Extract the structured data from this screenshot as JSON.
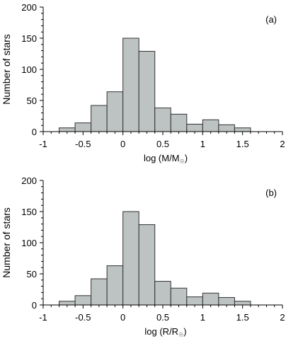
{
  "chart_data": [
    {
      "type": "bar",
      "panel_label": "(a)",
      "xlabel_main": "log (M/M",
      "xlabel_sub": "☉",
      "xlabel_close": ")",
      "ylabel": "Number of stars",
      "xlim": [
        -1,
        2
      ],
      "ylim": [
        0,
        200
      ],
      "x_ticks": [
        "-1",
        "-0.5",
        "0",
        "0.5",
        "1",
        "1.5",
        "2"
      ],
      "y_ticks": [
        "0",
        "50",
        "100",
        "150",
        "200"
      ],
      "bin_width": 0.2,
      "bins": [
        {
          "x": -0.8,
          "value": 6
        },
        {
          "x": -0.6,
          "value": 14
        },
        {
          "x": -0.4,
          "value": 42
        },
        {
          "x": -0.2,
          "value": 64
        },
        {
          "x": 0.0,
          "value": 150
        },
        {
          "x": 0.2,
          "value": 129
        },
        {
          "x": 0.4,
          "value": 38
        },
        {
          "x": 0.6,
          "value": 28
        },
        {
          "x": 0.8,
          "value": 12
        },
        {
          "x": 1.0,
          "value": 19
        },
        {
          "x": 1.2,
          "value": 11
        },
        {
          "x": 1.4,
          "value": 6
        }
      ],
      "bar_color": "#bcc3c2"
    },
    {
      "type": "bar",
      "panel_label": "(b)",
      "xlabel_main": "log (R/R",
      "xlabel_sub": "☉",
      "xlabel_close": ")",
      "ylabel": "Number of stars",
      "xlim": [
        -1,
        2
      ],
      "ylim": [
        0,
        200
      ],
      "x_ticks": [
        "-1",
        "-0.5",
        "0",
        "0.5",
        "1",
        "1.5",
        "2"
      ],
      "y_ticks": [
        "0",
        "50",
        "100",
        "150",
        "200"
      ],
      "bin_width": 0.2,
      "bins": [
        {
          "x": -0.8,
          "value": 6
        },
        {
          "x": -0.6,
          "value": 15
        },
        {
          "x": -0.4,
          "value": 42
        },
        {
          "x": -0.2,
          "value": 63
        },
        {
          "x": 0.0,
          "value": 150
        },
        {
          "x": 0.2,
          "value": 129
        },
        {
          "x": 0.4,
          "value": 38
        },
        {
          "x": 0.6,
          "value": 27
        },
        {
          "x": 0.8,
          "value": 13
        },
        {
          "x": 1.0,
          "value": 19
        },
        {
          "x": 1.2,
          "value": 12
        },
        {
          "x": 1.4,
          "value": 6
        }
      ],
      "bar_color": "#bcc3c2"
    }
  ]
}
